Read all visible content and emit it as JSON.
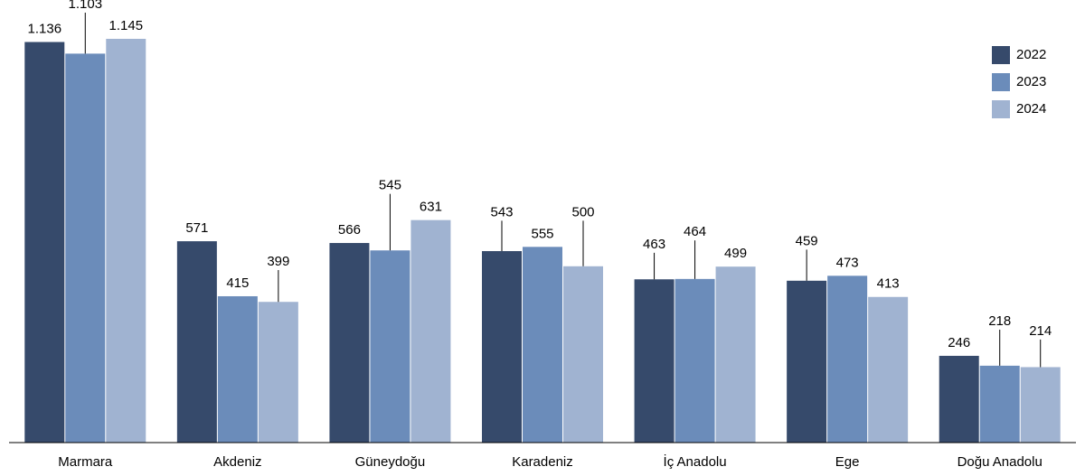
{
  "chart_data": {
    "type": "bar",
    "categories": [
      "Marmara",
      "Akdeniz",
      "Güneydoğu",
      "Karadeniz",
      "İç Anadolu",
      "Ege",
      "Doğu Anadolu"
    ],
    "series": [
      {
        "name": "2022",
        "color": "#364a6b",
        "values": [
          1136,
          571,
          566,
          543,
          463,
          459,
          246
        ],
        "value_labels": [
          "1.136",
          "571",
          "566",
          "543",
          "463",
          "459",
          "246"
        ]
      },
      {
        "name": "2023",
        "color": "#6b8cba",
        "values": [
          1103,
          415,
          545,
          555,
          464,
          473,
          218
        ],
        "value_labels": [
          "1.103",
          "415",
          "545",
          "555",
          "464",
          "473",
          "218"
        ]
      },
      {
        "name": "2024",
        "color": "#a0b3d1",
        "values": [
          1145,
          399,
          631,
          500,
          499,
          413,
          214
        ],
        "value_labels": [
          "1.145",
          "399",
          "631",
          "500",
          "499",
          "413",
          "214"
        ]
      }
    ],
    "legend": "upper right"
  }
}
